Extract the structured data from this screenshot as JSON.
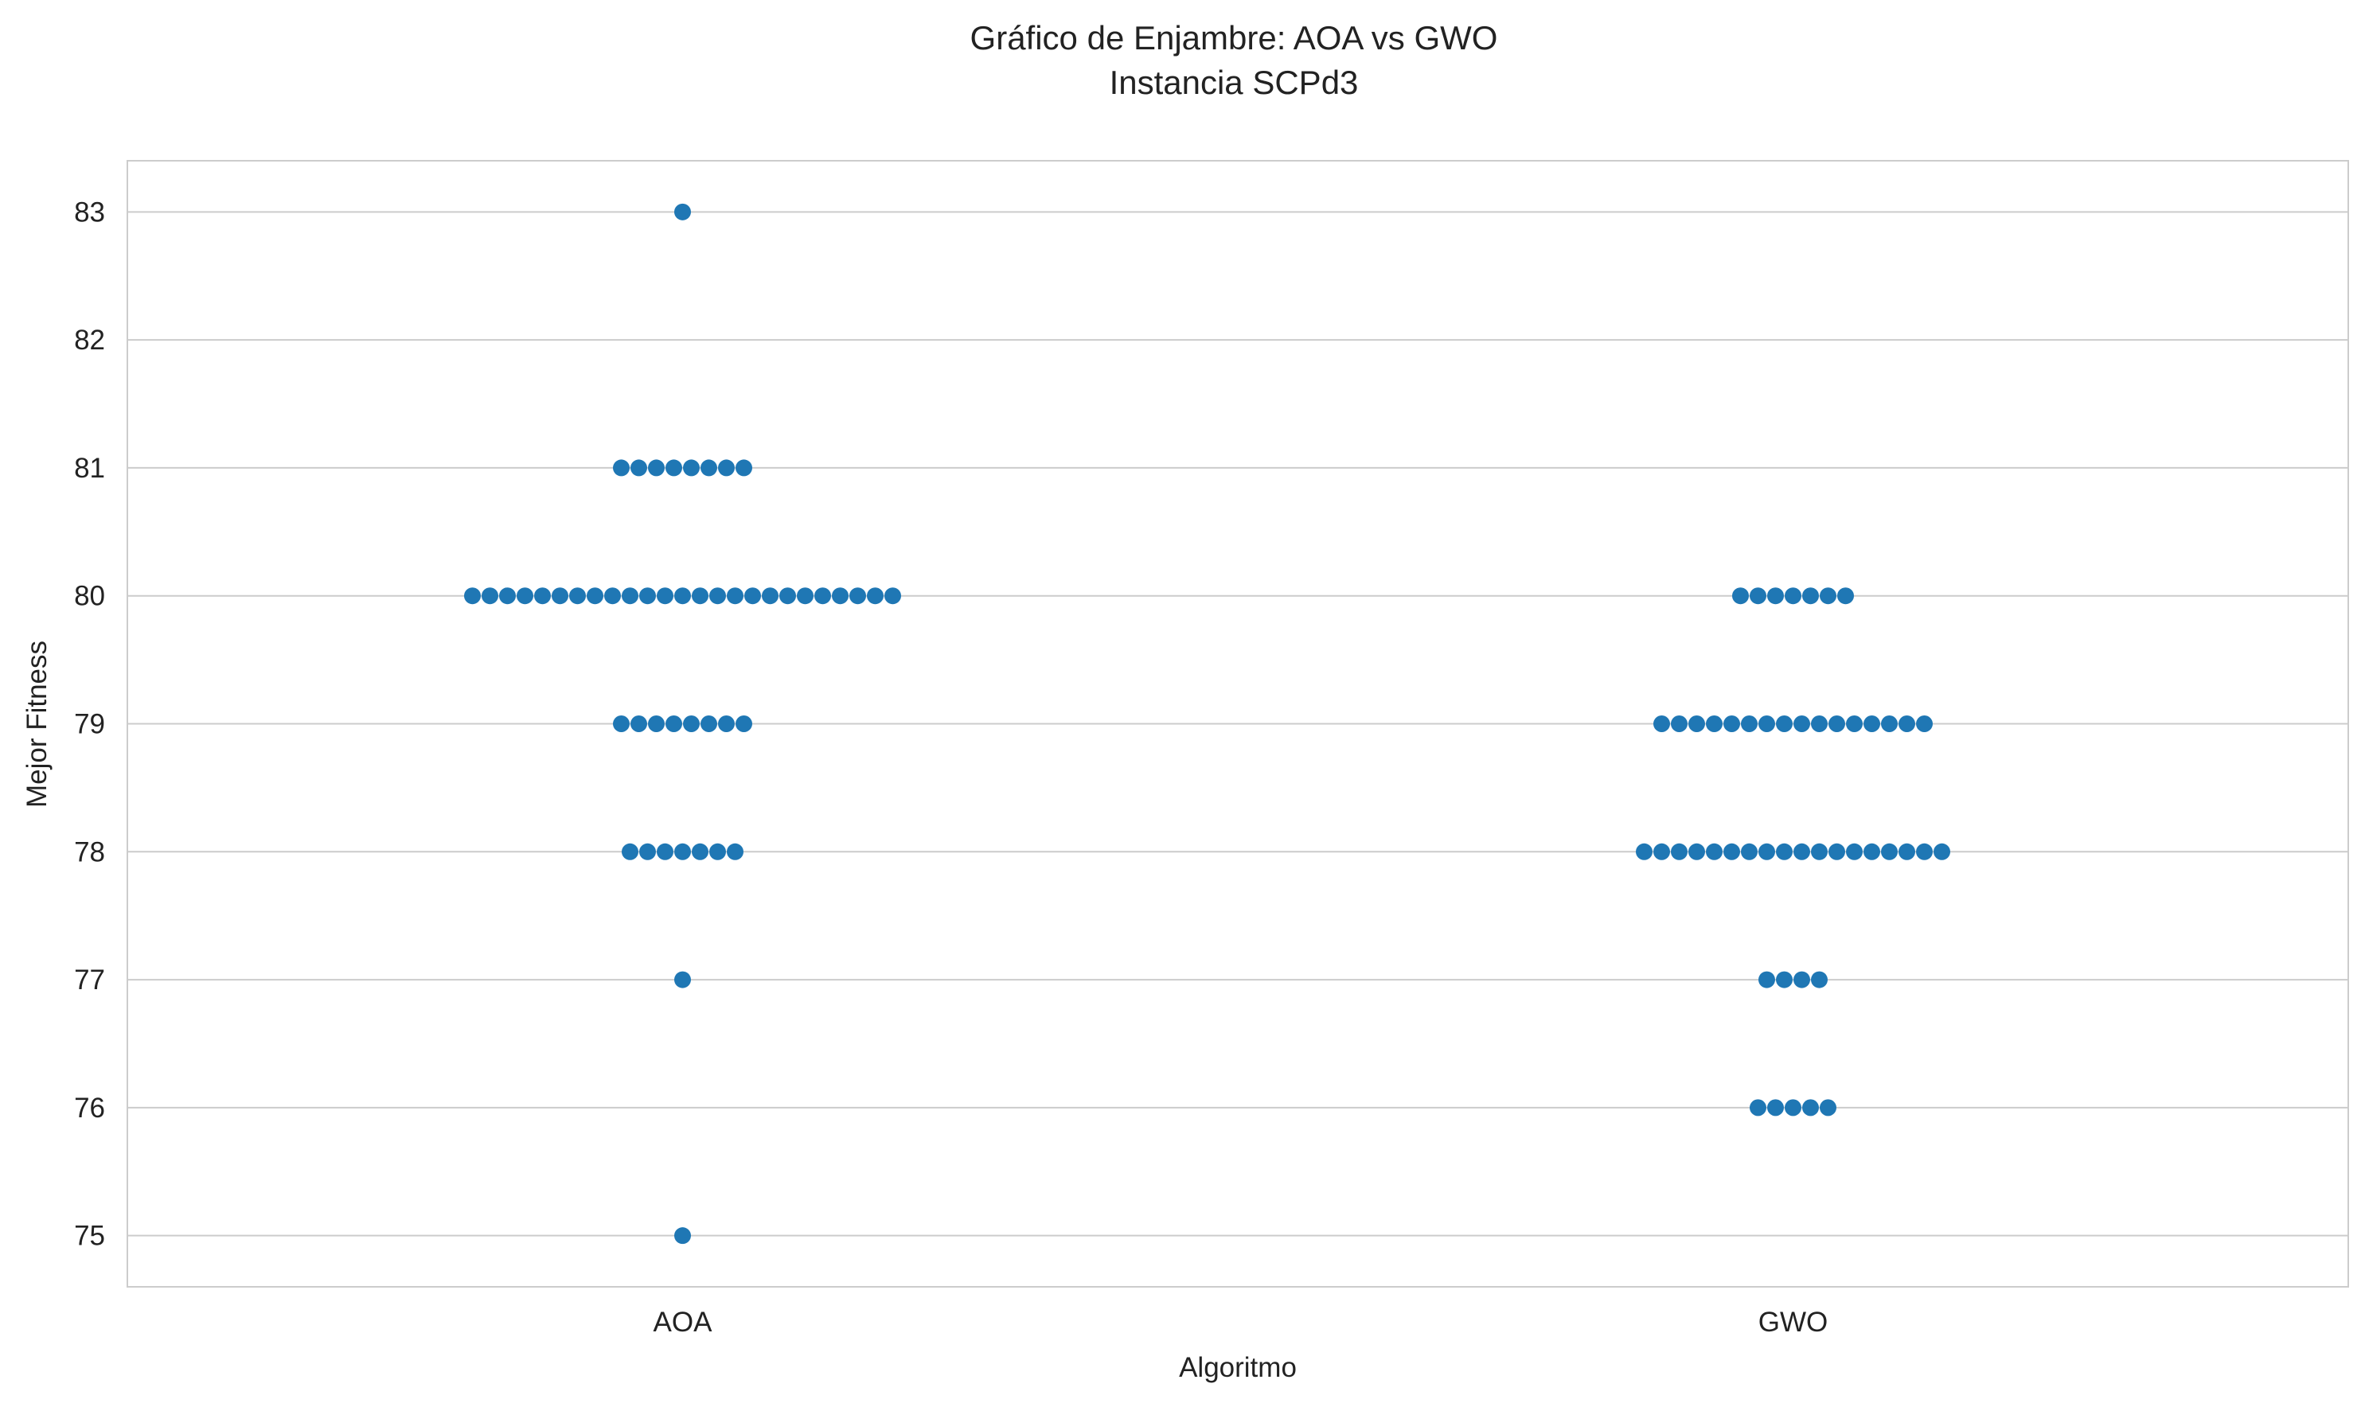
{
  "chart_data": {
    "type": "scatter",
    "subtype": "swarm",
    "title": "Gráfico de Enjambre: AOA vs GWO",
    "subtitle": "Instancia SCPd3",
    "xlabel": "Algoritmo",
    "ylabel": "Mejor Fitness",
    "categories": [
      "AOA",
      "GWO"
    ],
    "yticks": [
      75,
      76,
      77,
      78,
      79,
      80,
      81,
      82,
      83
    ],
    "ylim": [
      74.6,
      83.4
    ],
    "grid": "horizontal",
    "point_color": "#1f77b4",
    "series": [
      {
        "category": "AOA",
        "counts": {
          "75": 1,
          "77": 1,
          "78": 7,
          "79": 8,
          "80": 25,
          "81": 8,
          "83": 1
        }
      },
      {
        "category": "GWO",
        "counts": {
          "76": 5,
          "77": 4,
          "78": 18,
          "79": 16,
          "80": 7
        }
      }
    ]
  }
}
